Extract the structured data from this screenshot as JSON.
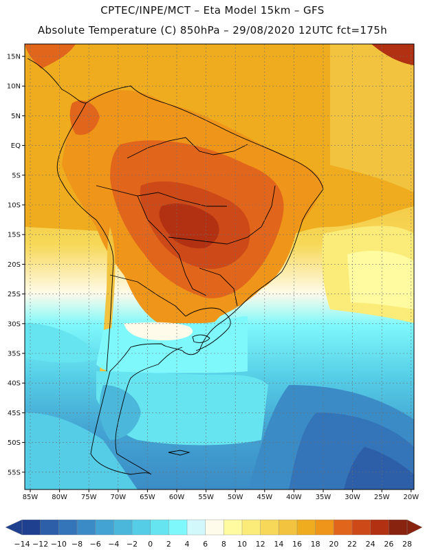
{
  "header": {
    "line1": "CPTEC/INPE/MCT –  Eta Model 15km – GFS",
    "line2": "Absolute Temperature (C) 850hPa – 29/08/2020 12UTC fct=175h"
  },
  "axes": {
    "lat_labels": [
      "15N",
      "10N",
      "5N",
      "EQ",
      "5S",
      "10S",
      "15S",
      "20S",
      "25S",
      "30S",
      "35S",
      "40S",
      "45S",
      "50S",
      "55S"
    ],
    "lon_labels": [
      "85W",
      "80W",
      "75W",
      "70W",
      "65W",
      "60W",
      "55W",
      "50W",
      "45W",
      "40W",
      "35W",
      "30W",
      "25W",
      "20W"
    ]
  },
  "colorbar": {
    "ticks": [
      "-14",
      "-12",
      "-10",
      "-8",
      "-6",
      "-4",
      "-2",
      "0",
      "2",
      "4",
      "6",
      "8",
      "10",
      "12",
      "14",
      "16",
      "18",
      "20",
      "22",
      "24",
      "26",
      "28"
    ],
    "colors": [
      "#1f3f8f",
      "#2d5fa8",
      "#3474b8",
      "#3b8cc6",
      "#43a3d2",
      "#4bb8db",
      "#55cde6",
      "#66e4f0",
      "#7ef8fb",
      "#d2f8fb",
      "#fffbea",
      "#fffba0",
      "#fbec7a",
      "#f7d858",
      "#f2c33e",
      "#eeac1e",
      "#ee951a",
      "#e1661b",
      "#cd4a18",
      "#b23113",
      "#87230e"
    ],
    "low_color": "#1f3f8f",
    "high_color": "#87230e"
  }
}
